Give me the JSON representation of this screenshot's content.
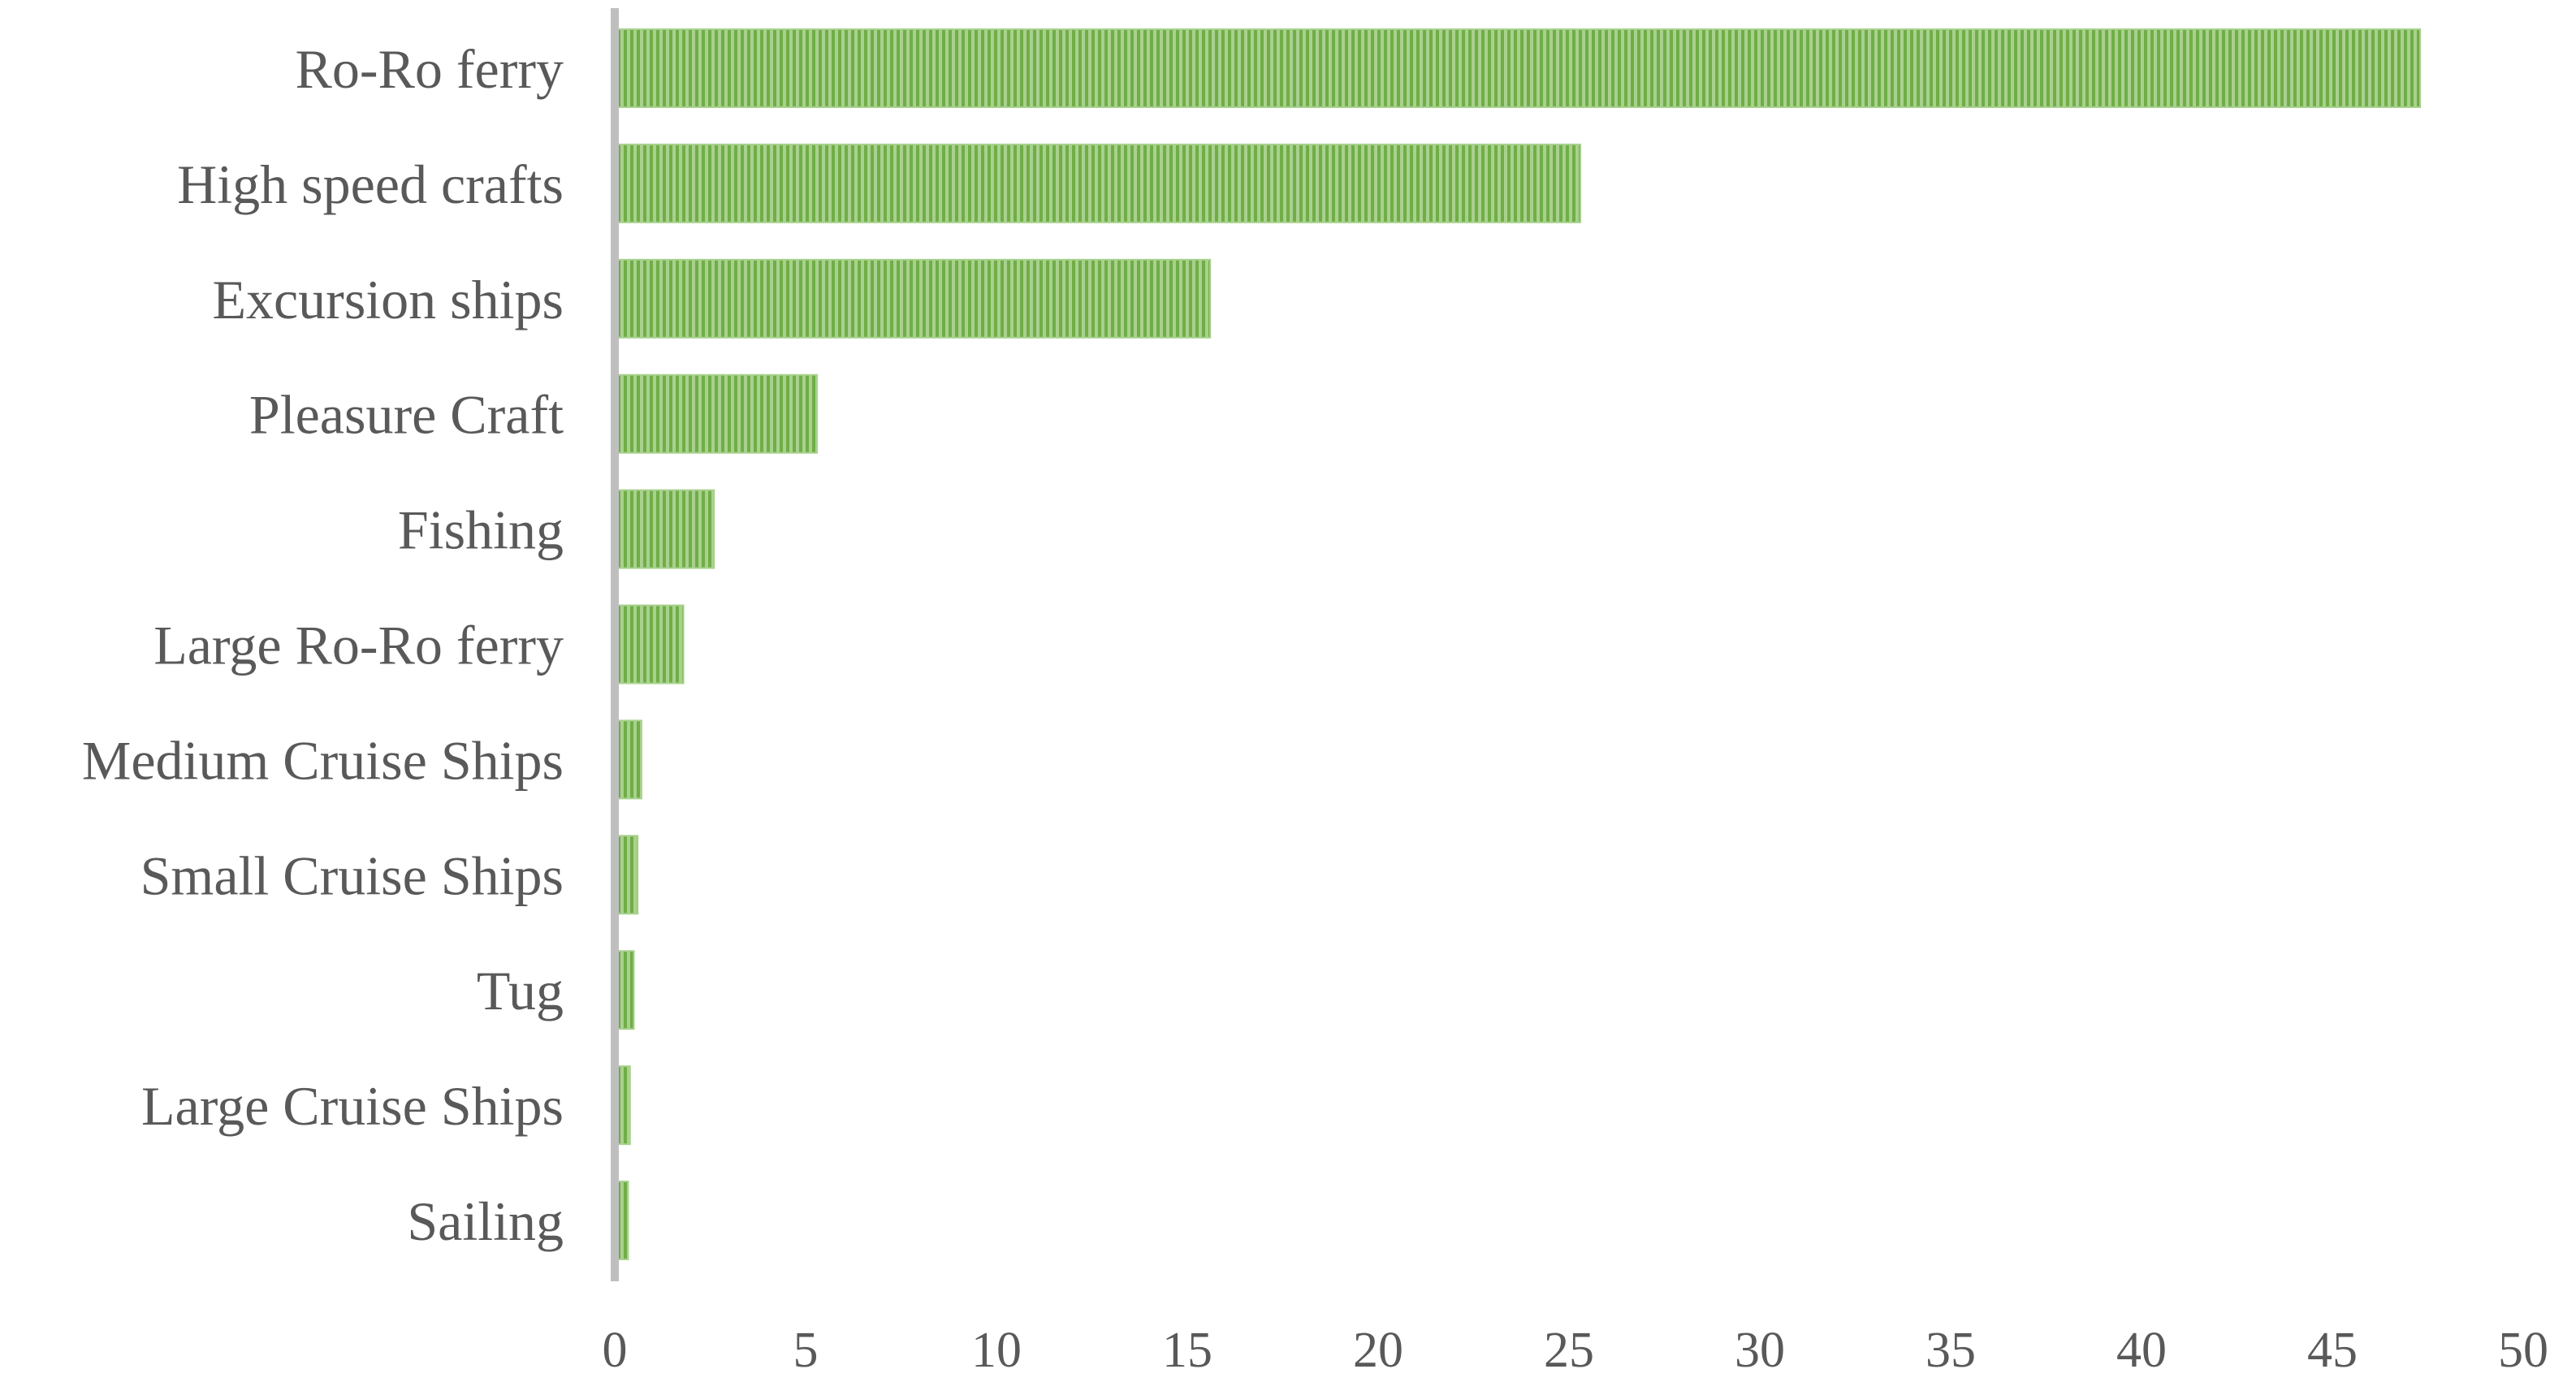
{
  "chart_data": {
    "type": "bar",
    "orientation": "horizontal",
    "categories": [
      "Ro-Ro ferry",
      "High speed crafts",
      "Excursion ships",
      "Pleasure Craft",
      "Fishing",
      "Large Ro-Ro ferry",
      "Medium Cruise Ships",
      "Small Cruise Ships",
      "Tug",
      "Large Cruise Ships",
      "Sailing"
    ],
    "values": [
      47.3,
      25.3,
      15.6,
      5.3,
      2.6,
      1.8,
      0.7,
      0.6,
      0.5,
      0.4,
      0.35
    ],
    "xticks": [
      "0",
      "5",
      "10",
      "15",
      "20",
      "25",
      "30",
      "35",
      "40",
      "45",
      "50"
    ],
    "xlim": [
      0,
      50
    ],
    "title": "",
    "xlabel": "",
    "ylabel": "",
    "grid": false,
    "legend": "none",
    "colors": {
      "bar_fill": "#a9d18e",
      "bar_stripe": "#70ad47",
      "axis_line": "#bfbfbf",
      "text": "#595959"
    }
  }
}
